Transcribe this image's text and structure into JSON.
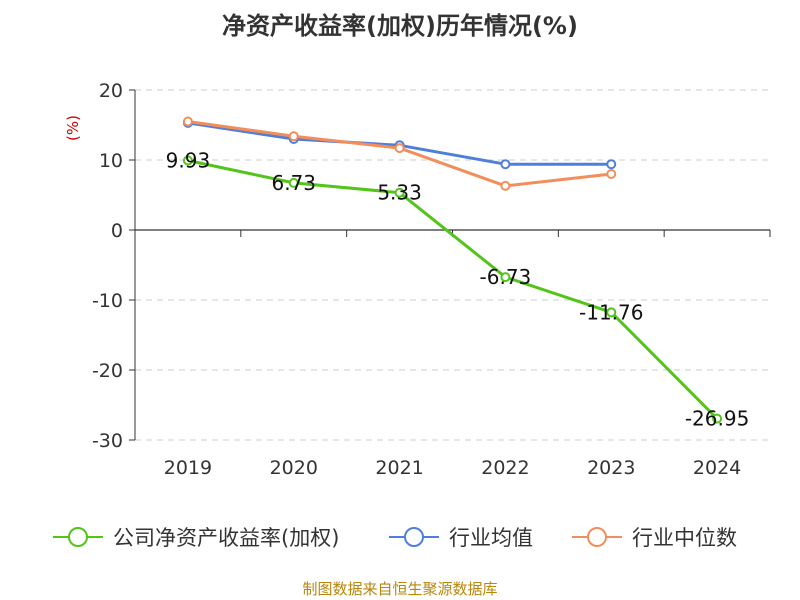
{
  "chart_data": {
    "type": "line",
    "title": "净资产收益率(加权)历年情况(%)",
    "ylabel": "(%)",
    "xlabel": "",
    "categories": [
      "2019",
      "2020",
      "2021",
      "2022",
      "2023",
      "2024"
    ],
    "ylim": [
      -30,
      20
    ],
    "yticks": [
      20,
      10,
      0,
      -10,
      -20,
      -30
    ],
    "grid": true,
    "legend_position": "bottom",
    "series": [
      {
        "name": "公司净资产收益率(加权)",
        "color": "#52c41a",
        "values": [
          9.93,
          6.73,
          5.33,
          -6.73,
          -11.76,
          -26.95
        ],
        "labels": [
          "9.93",
          "6.73",
          "5.33",
          "-6.73",
          "-11.76",
          "-26.95"
        ]
      },
      {
        "name": "行业均值",
        "color": "#4f7fd8",
        "values": [
          15.3,
          13.0,
          12.1,
          9.4,
          9.4,
          null
        ]
      },
      {
        "name": "行业中位数",
        "color": "#f28e5b",
        "values": [
          15.5,
          13.4,
          11.7,
          6.3,
          8.0,
          null
        ]
      }
    ]
  },
  "footer": {
    "source": "制图数据来自恒生聚源数据库"
  }
}
